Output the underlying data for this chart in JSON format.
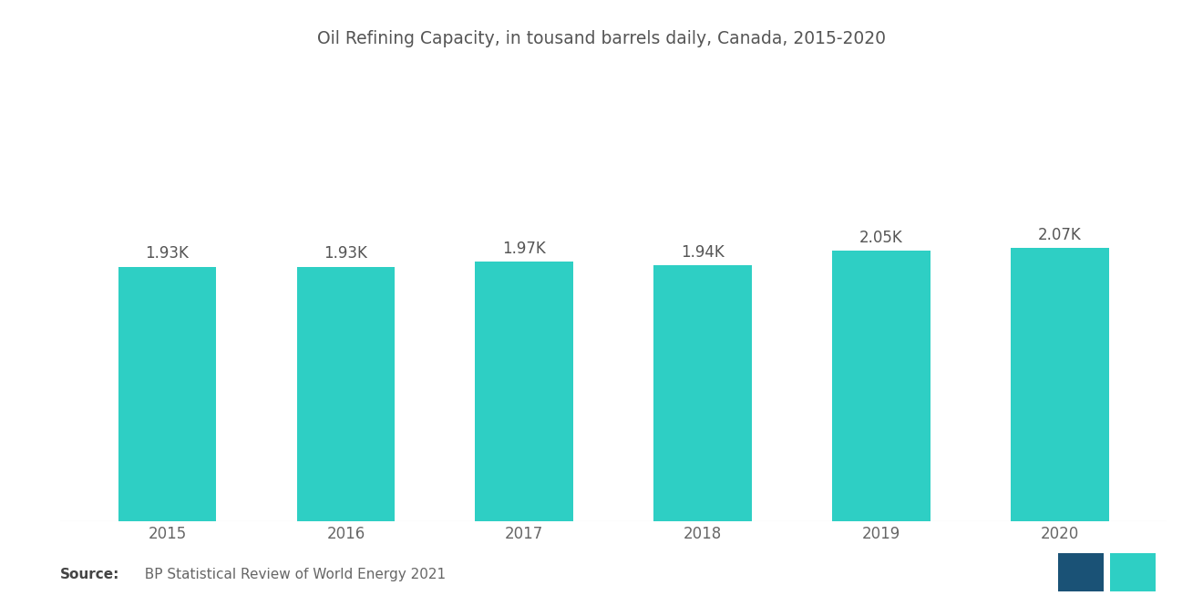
{
  "title": "Oil Refining Capacity, in tousand barrels daily, Canada, 2015-2020",
  "categories": [
    "2015",
    "2016",
    "2017",
    "2018",
    "2019",
    "2020"
  ],
  "values": [
    1930,
    1930,
    1970,
    1940,
    2050,
    2070
  ],
  "labels": [
    "1.93K",
    "1.93K",
    "1.97K",
    "1.94K",
    "2.05K",
    "2.07K"
  ],
  "bar_color": "#2ecfc4",
  "background_color": "#ffffff",
  "source_bold": "Source:",
  "source_text": "  BP Statistical Review of World Energy 2021",
  "title_fontsize": 13.5,
  "label_fontsize": 12,
  "tick_fontsize": 12,
  "source_fontsize": 11,
  "ylim": [
    0,
    3400
  ],
  "bar_width": 0.55
}
